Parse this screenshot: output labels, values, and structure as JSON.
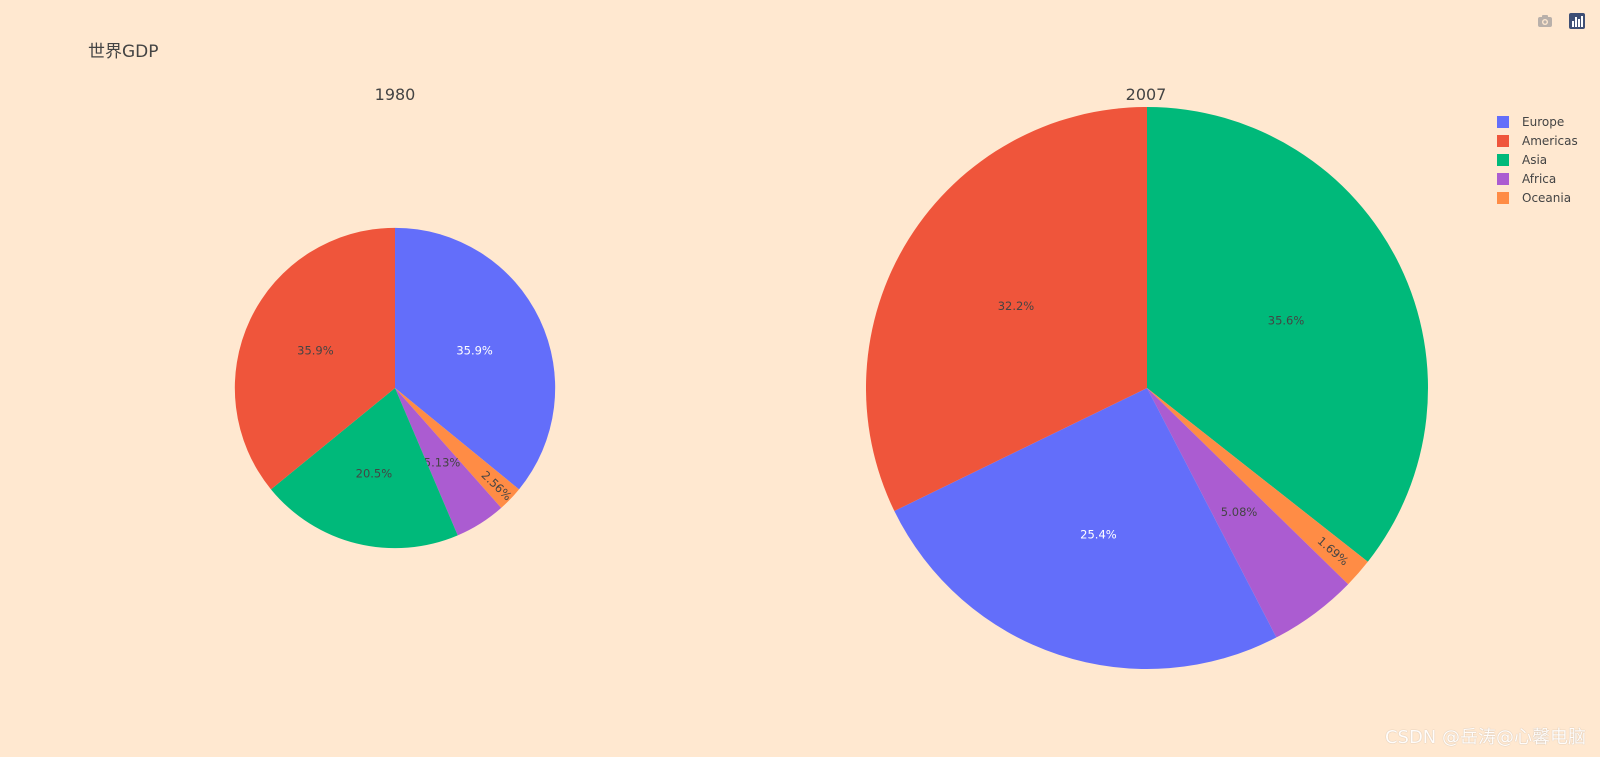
{
  "modebar": {
    "camera_icon": "camera-icon",
    "plotly_icon": "plotly-logo-icon"
  },
  "watermark": "CSDN @岳涛@心馨电脑",
  "chart_data": {
    "type": "pie",
    "title": "世界GDP",
    "legend_position": "top-right",
    "categories": [
      "Europe",
      "Americas",
      "Asia",
      "Africa",
      "Oceania"
    ],
    "colors": {
      "Europe": "#636efa",
      "Americas": "#ef553b",
      "Asia": "#00b97a",
      "Africa": "#ab5cd1",
      "Oceania": "#ff8c45"
    },
    "pies": [
      {
        "subtitle": "1980",
        "relative_size": 0.57,
        "slices": [
          {
            "name": "Europe",
            "value": 35.9,
            "label": "35.9%"
          },
          {
            "name": "Oceania",
            "value": 2.56,
            "label": "2.56%"
          },
          {
            "name": "Africa",
            "value": 5.13,
            "label": "5.13%"
          },
          {
            "name": "Asia",
            "value": 20.5,
            "label": "20.5%"
          },
          {
            "name": "Americas",
            "value": 35.9,
            "label": "35.9%"
          }
        ]
      },
      {
        "subtitle": "2007",
        "relative_size": 1.0,
        "slices": [
          {
            "name": "Asia",
            "value": 35.6,
            "label": "35.6%"
          },
          {
            "name": "Oceania",
            "value": 1.69,
            "label": "1.69%"
          },
          {
            "name": "Africa",
            "value": 5.08,
            "label": "5.08%"
          },
          {
            "name": "Europe",
            "value": 25.4,
            "label": "25.4%"
          },
          {
            "name": "Americas",
            "value": 32.2,
            "label": "32.2%"
          }
        ]
      }
    ]
  }
}
